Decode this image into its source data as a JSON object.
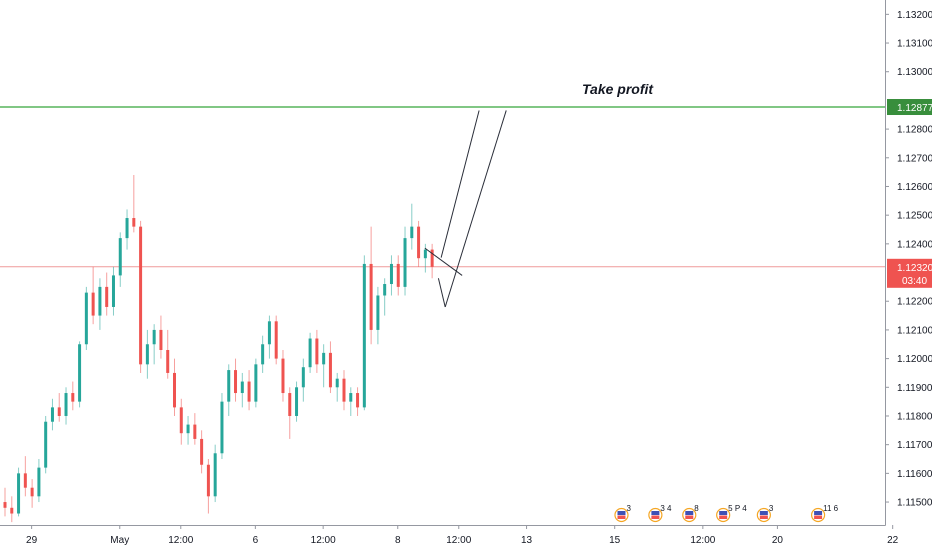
{
  "chart_data": {
    "type": "candlestick",
    "title": "",
    "xlabel": "",
    "ylabel": "",
    "ylim": [
      1.1142,
      1.1325
    ],
    "y_ticks": [
      "1.11500",
      "1.11600",
      "1.11700",
      "1.11800",
      "1.11900",
      "1.12000",
      "1.12100",
      "1.12200",
      "1.12400",
      "1.12500",
      "1.12600",
      "1.12700",
      "1.12800",
      "1.13000",
      "1.13100",
      "1.13200"
    ],
    "y_tick_values": [
      1.115,
      1.116,
      1.117,
      1.118,
      1.119,
      1.12,
      1.121,
      1.122,
      1.124,
      1.125,
      1.126,
      1.127,
      1.128,
      1.13,
      1.131,
      1.132
    ],
    "x_ticks": [
      "29",
      "May",
      "12:00",
      "6",
      "12:00",
      "8",
      "12:00",
      "13",
      "15",
      "12:00",
      "20",
      "22"
    ],
    "x_tick_index": [
      4,
      17,
      26,
      37,
      47,
      58,
      67,
      77,
      90,
      103,
      114,
      131
    ],
    "candles": [
      [
        1.115,
        1.1155,
        1.1145,
        1.1148
      ],
      [
        1.1148,
        1.1152,
        1.1143,
        1.1146
      ],
      [
        1.1146,
        1.1162,
        1.1145,
        1.116
      ],
      [
        1.116,
        1.1166,
        1.1152,
        1.1155
      ],
      [
        1.1155,
        1.1158,
        1.1148,
        1.1152
      ],
      [
        1.1152,
        1.1165,
        1.115,
        1.1162
      ],
      [
        1.1162,
        1.118,
        1.116,
        1.1178
      ],
      [
        1.1178,
        1.1186,
        1.1175,
        1.1183
      ],
      [
        1.1183,
        1.1188,
        1.1178,
        1.118
      ],
      [
        1.118,
        1.119,
        1.1177,
        1.1188
      ],
      [
        1.1188,
        1.1192,
        1.1182,
        1.1185
      ],
      [
        1.1185,
        1.1206,
        1.1183,
        1.1205
      ],
      [
        1.1205,
        1.1225,
        1.1203,
        1.1223
      ],
      [
        1.1223,
        1.1232,
        1.1212,
        1.1215
      ],
      [
        1.1215,
        1.1228,
        1.121,
        1.1225
      ],
      [
        1.1225,
        1.123,
        1.1215,
        1.1218
      ],
      [
        1.1218,
        1.1232,
        1.1215,
        1.1229
      ],
      [
        1.1229,
        1.1244,
        1.1225,
        1.1242
      ],
      [
        1.1242,
        1.1252,
        1.1238,
        1.1249
      ],
      [
        1.1249,
        1.1264,
        1.1244,
        1.1246
      ],
      [
        1.1246,
        1.1248,
        1.1195,
        1.1198
      ],
      [
        1.1198,
        1.121,
        1.1193,
        1.1205
      ],
      [
        1.1205,
        1.1212,
        1.1198,
        1.121
      ],
      [
        1.121,
        1.1215,
        1.12,
        1.1203
      ],
      [
        1.1203,
        1.121,
        1.1193,
        1.1195
      ],
      [
        1.1195,
        1.12,
        1.118,
        1.1183
      ],
      [
        1.1183,
        1.1186,
        1.117,
        1.1174
      ],
      [
        1.1174,
        1.118,
        1.117,
        1.1177
      ],
      [
        1.1177,
        1.1181,
        1.117,
        1.1172
      ],
      [
        1.1172,
        1.1175,
        1.116,
        1.1163
      ],
      [
        1.1163,
        1.1165,
        1.1146,
        1.1152
      ],
      [
        1.1152,
        1.117,
        1.115,
        1.1167
      ],
      [
        1.1167,
        1.1188,
        1.1165,
        1.1185
      ],
      [
        1.1185,
        1.1198,
        1.118,
        1.1196
      ],
      [
        1.1196,
        1.12,
        1.1185,
        1.1188
      ],
      [
        1.1188,
        1.1195,
        1.1183,
        1.1192
      ],
      [
        1.1192,
        1.1196,
        1.1182,
        1.1185
      ],
      [
        1.1185,
        1.12,
        1.1183,
        1.1198
      ],
      [
        1.1198,
        1.1208,
        1.1195,
        1.1205
      ],
      [
        1.1205,
        1.1215,
        1.12,
        1.1213
      ],
      [
        1.1213,
        1.1215,
        1.1198,
        1.12
      ],
      [
        1.12,
        1.1203,
        1.1185,
        1.1188
      ],
      [
        1.1188,
        1.119,
        1.1172,
        1.118
      ],
      [
        1.118,
        1.1192,
        1.1178,
        1.119
      ],
      [
        1.119,
        1.12,
        1.1185,
        1.1197
      ],
      [
        1.1197,
        1.1209,
        1.1195,
        1.1207
      ],
      [
        1.1207,
        1.121,
        1.1195,
        1.1198
      ],
      [
        1.1198,
        1.1205,
        1.119,
        1.1202
      ],
      [
        1.1202,
        1.1206,
        1.1188,
        1.119
      ],
      [
        1.119,
        1.1195,
        1.1185,
        1.1193
      ],
      [
        1.1193,
        1.1196,
        1.1182,
        1.1185
      ],
      [
        1.1185,
        1.119,
        1.118,
        1.1188
      ],
      [
        1.1188,
        1.119,
        1.118,
        1.1183
      ],
      [
        1.1183,
        1.1236,
        1.1182,
        1.1233
      ],
      [
        1.1233,
        1.1246,
        1.1205,
        1.121
      ],
      [
        1.121,
        1.1225,
        1.1205,
        1.1222
      ],
      [
        1.1222,
        1.1228,
        1.1215,
        1.1226
      ],
      [
        1.1226,
        1.1236,
        1.1222,
        1.1233
      ],
      [
        1.1233,
        1.1236,
        1.1222,
        1.1225
      ],
      [
        1.1225,
        1.1246,
        1.1222,
        1.1242
      ],
      [
        1.1242,
        1.1254,
        1.1238,
        1.1246
      ],
      [
        1.1246,
        1.1248,
        1.1232,
        1.1235
      ],
      [
        1.1235,
        1.124,
        1.123,
        1.1238
      ],
      [
        1.1238,
        1.124,
        1.1228,
        1.1232
      ]
    ],
    "last_price": "1.12320",
    "countdown": "03:40",
    "take_profit_level": "1.12877",
    "annotations": [
      {
        "text": "Take profit"
      }
    ],
    "events": [
      {
        "index": 91,
        "label": "3"
      },
      {
        "index": 96,
        "label": "3 4"
      },
      {
        "index": 101,
        "label": "8"
      },
      {
        "index": 106,
        "label": "5 P 4"
      },
      {
        "index": 112,
        "label": "3"
      },
      {
        "index": 120,
        "label": "11 6"
      }
    ]
  },
  "colors": {
    "up": "#26a69a",
    "down": "#ef5350",
    "take_profit_line": "#81c784",
    "take_profit_badge": "#388e3c",
    "price_line": "#ef9a9a",
    "price_badge": "#ef5350",
    "axis_border": "#9598a1",
    "text": "#131722"
  }
}
